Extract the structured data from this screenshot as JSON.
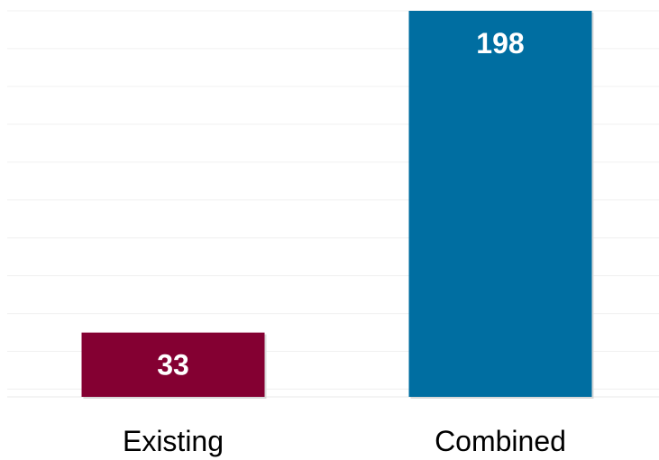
{
  "chart_data": {
    "type": "bar",
    "categories": [
      "Existing",
      "Combined"
    ],
    "values": [
      33,
      198
    ],
    "title": "",
    "xlabel": "",
    "ylabel": "",
    "ylim": [
      0,
      198
    ],
    "grid": true,
    "colors": [
      "#840032",
      "#006ea1"
    ],
    "data_labels": [
      "33",
      "198"
    ],
    "axis_ticks_visible": false
  }
}
